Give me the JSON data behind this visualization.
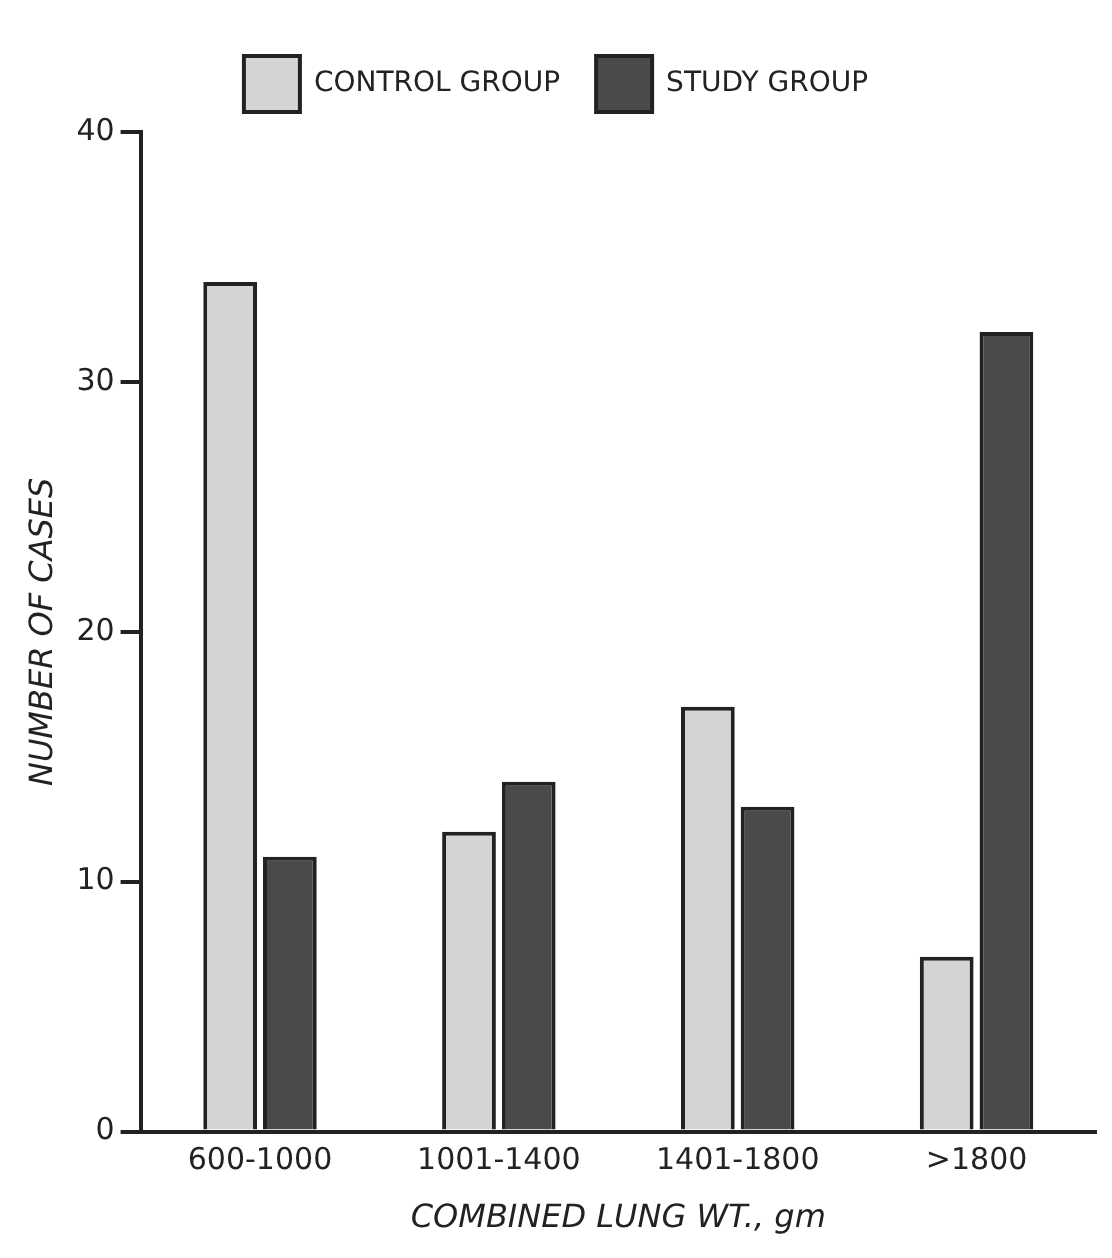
{
  "chart_data": {
    "type": "bar",
    "xlabel": "COMBINED LUNG WT., gm",
    "ylabel": "NUMBER OF CASES",
    "categories": [
      "600-1000",
      "1001-1400",
      "1401-1800",
      ">1800"
    ],
    "series": [
      {
        "name": "CONTROL GROUP",
        "color": "#d4d4d4",
        "values": [
          34,
          12,
          17,
          7
        ]
      },
      {
        "name": "STUDY GROUP",
        "color": "#4a4a4a",
        "values": [
          11,
          14,
          13,
          32
        ]
      }
    ],
    "ylim": [
      0,
      40
    ],
    "yticks": [
      0,
      10,
      20,
      30,
      40
    ],
    "grid": false,
    "legend": "top"
  }
}
